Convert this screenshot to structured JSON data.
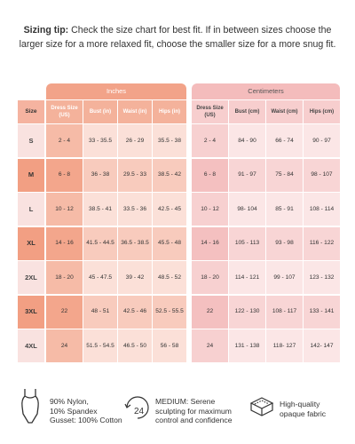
{
  "tip": {
    "label": "Sizing tip:",
    "text": "Check the size chart for best fit. If in between sizes choose the larger size for a more relaxed fit, choose the smaller size for a more snug fit."
  },
  "table": {
    "size_header": "Size",
    "groups": [
      "Inches",
      "Centimeters"
    ],
    "inch_headers": [
      "Dress Size (US)",
      "Bust (in)",
      "Waist (in)",
      "Hips (in)"
    ],
    "cm_headers": [
      "Dress Size (US)",
      "Bust (cm)",
      "Waist (cm)",
      "Hips (cm)"
    ],
    "rows": [
      [
        "S",
        "2 - 4",
        "33 - 35.5",
        "26 - 29",
        "35.5 - 38",
        "2 - 4",
        "84 - 90",
        "66 - 74",
        "90 - 97"
      ],
      [
        "M",
        "6 - 8",
        "36 - 38",
        "29.5 - 33",
        "38.5 - 42",
        "6 - 8",
        "91 - 97",
        "75 - 84",
        "98 - 107"
      ],
      [
        "L",
        "10 - 12",
        "38.5 - 41",
        "33.5 - 36",
        "42.5 - 45",
        "10 - 12",
        "98- 104",
        "85 - 91",
        "108 - 114"
      ],
      [
        "XL",
        "14 - 16",
        "41.5 - 44.5",
        "36.5 - 38.5",
        "45.5 - 48",
        "14 - 16",
        "105 - 113",
        "93 - 98",
        "116 - 122"
      ],
      [
        "2XL",
        "18 - 20",
        "45 - 47.5",
        "39 - 42",
        "48.5 - 52",
        "18 - 20",
        "114 - 121",
        "99 - 107",
        "123 - 132"
      ],
      [
        "3XL",
        "22",
        "48 - 51",
        "42.5 - 46",
        "52.5 - 55.5",
        "22",
        "122 - 130",
        "108 - 117",
        "133 - 141"
      ],
      [
        "4XL",
        "24",
        "51.5 - 54.5",
        "46.5 - 50",
        "56 - 58",
        "24",
        "131 - 138",
        "118- 127",
        "142- 147"
      ]
    ]
  },
  "features": [
    {
      "lines": [
        "90% Nylon,",
        "10% Spandex",
        "Gusset: 100% Cotton"
      ]
    },
    {
      "lines": [
        "MEDIUM: Serene",
        "sculpting for maximum",
        "control and confidence"
      ]
    },
    {
      "lines": [
        "High-quality",
        "opaque fabric"
      ]
    }
  ]
}
